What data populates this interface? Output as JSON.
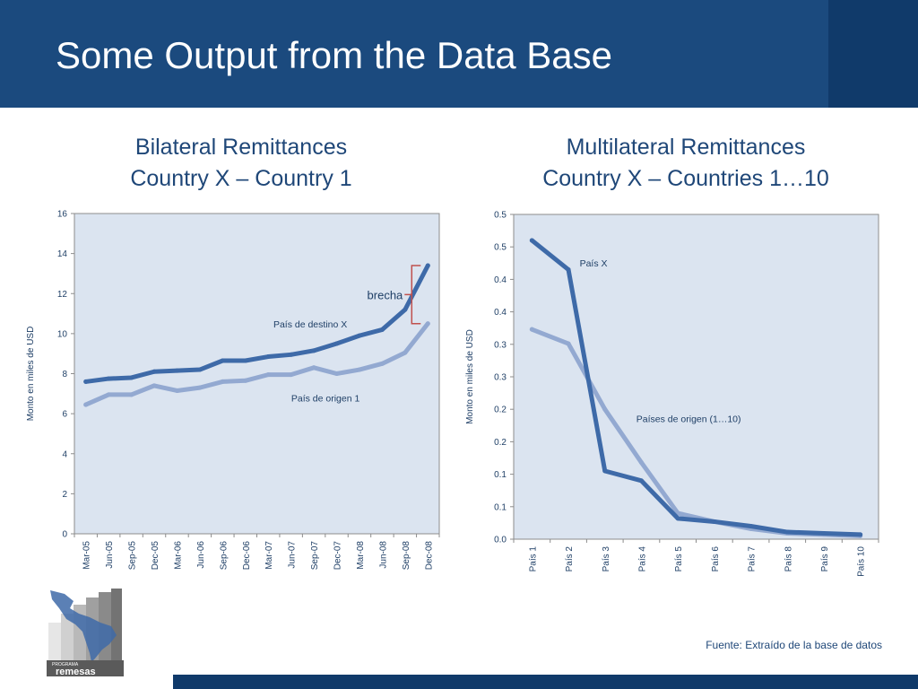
{
  "slide": {
    "title": "Some Output from the Data Base",
    "source": "Fuente: Extraído de la base de datos",
    "logo_small": "PROGRAMA",
    "logo_text": "remesas"
  },
  "colors": {
    "header": "#1b4a7e",
    "title_text": "#1f4778",
    "plot_bg": "#dbe4f0",
    "series_dark": "#3e6aa8",
    "series_light": "#93a9d1",
    "bracket": "#c0504d"
  },
  "chart_data": [
    {
      "type": "line",
      "title": "Bilateral Remittances",
      "subtitle": "Country X – Country 1",
      "xlabel": "",
      "ylabel": "Monto en miles de USD",
      "categories": [
        "Mar-05",
        "Jun-05",
        "Sep-05",
        "Dec-05",
        "Mar-06",
        "Jun-06",
        "Sep-06",
        "Dec-06",
        "Mar-07",
        "Jun-07",
        "Sep-07",
        "Dec-07",
        "Mar-08",
        "Jun-08",
        "Sep-08",
        "Dec-08"
      ],
      "yticks": [
        "0",
        "2",
        "4",
        "6",
        "8",
        "10",
        "12",
        "14",
        "16"
      ],
      "ylim": [
        0,
        16
      ],
      "grid": false,
      "series": [
        {
          "name": "País de destino X",
          "values": [
            7.6,
            7.75,
            7.8,
            8.1,
            8.15,
            8.2,
            8.65,
            8.65,
            8.85,
            8.95,
            9.15,
            9.5,
            9.9,
            10.2,
            11.2,
            13.4
          ]
        },
        {
          "name": "País de origen 1",
          "values": [
            6.45,
            6.95,
            6.95,
            7.4,
            7.15,
            7.3,
            7.6,
            7.65,
            7.95,
            7.95,
            8.3,
            8.0,
            8.2,
            8.5,
            9.05,
            10.5
          ]
        }
      ],
      "annotation": "brecha"
    },
    {
      "type": "line",
      "title": "Multilateral Remittances",
      "subtitle": "Country X – Countries 1…10",
      "xlabel": "",
      "ylabel": "Monto en miles de USD",
      "categories": [
        "País 1",
        "País 2",
        "País 3",
        "País 4",
        "País 5",
        "País 6",
        "País 7",
        "País 8",
        "País 9",
        "País 10"
      ],
      "yticks": [
        "0.0",
        "0.1",
        "0.1",
        "0.2",
        "0.2",
        "0.3",
        "0.3",
        "0.4",
        "0.4",
        "0.5",
        "0.5"
      ],
      "ylim": [
        0,
        0.5
      ],
      "grid": false,
      "series": [
        {
          "name": "País X",
          "values": [
            0.46,
            0.415,
            0.105,
            0.09,
            0.032,
            0.027,
            0.02,
            0.011,
            0.009,
            0.007
          ]
        },
        {
          "name": "Países de origen (1…10)",
          "values": [
            0.323,
            0.301,
            0.2,
            0.118,
            0.04,
            0.027,
            0.016,
            0.009,
            0.007,
            0.005
          ]
        }
      ]
    }
  ]
}
